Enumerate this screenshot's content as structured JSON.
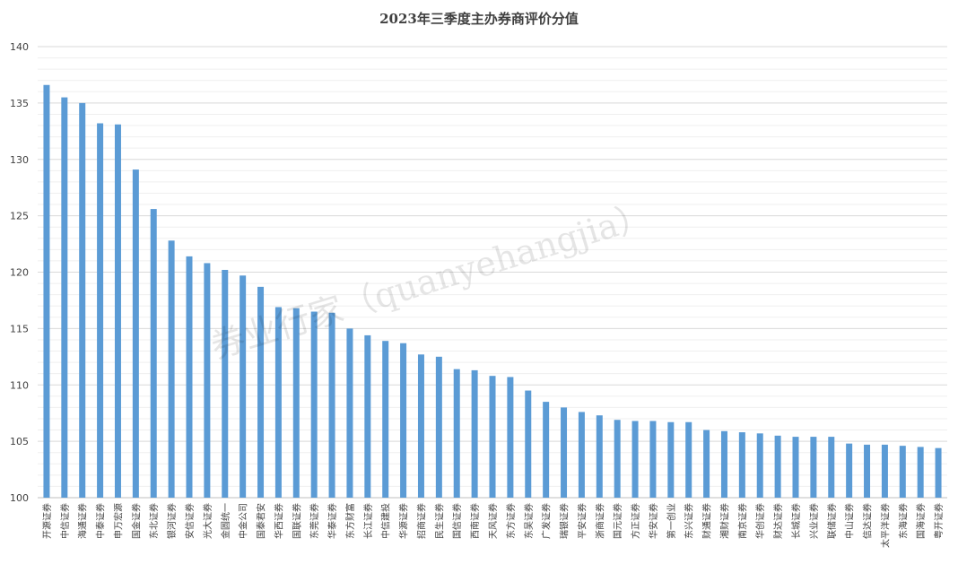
{
  "chart_data": {
    "type": "bar",
    "title": "2023年三季度主办券商评价分值",
    "ylim": [
      100,
      140
    ],
    "yticks": [
      100,
      105,
      110,
      115,
      120,
      125,
      130,
      135,
      140
    ],
    "grid": true,
    "legend": "none",
    "bar_color": "#5b9bd5",
    "categories": [
      "开源证券",
      "中信证券",
      "海通证券",
      "中泰证券",
      "申万宏源",
      "国金证券",
      "东北证券",
      "银河证券",
      "安信证券",
      "光大证券",
      "金圆统一",
      "中金公司",
      "国泰君安",
      "华西证券",
      "国联证券",
      "东莞证券",
      "华泰证券",
      "东方财富",
      "长江证券",
      "中信建投",
      "华源证券",
      "招商证券",
      "民生证券",
      "国信证券",
      "西南证券",
      "天风证券",
      "东方证券",
      "东吴证券",
      "广发证券",
      "瑞银证券",
      "平安证券",
      "浙商证券",
      "国元证券",
      "方正证券",
      "华安证券",
      "第一创业",
      "东兴证券",
      "财通证券",
      "湘财证券",
      "南京证券",
      "华创证券",
      "财达证券",
      "长城证券",
      "兴业证券",
      "联储证券",
      "中山证券",
      "信达证券",
      "太平洋证券",
      "东海证券",
      "国海证券",
      "粤开证券"
    ],
    "values": [
      136.6,
      135.5,
      135.0,
      133.2,
      133.1,
      129.1,
      125.6,
      122.8,
      121.4,
      120.8,
      120.2,
      119.7,
      118.7,
      116.9,
      116.8,
      116.5,
      116.4,
      115.0,
      114.4,
      113.9,
      113.7,
      112.7,
      112.5,
      111.4,
      111.3,
      110.8,
      110.7,
      109.5,
      108.5,
      108.0,
      107.6,
      107.3,
      106.9,
      106.8,
      106.8,
      106.7,
      106.7,
      106.0,
      105.9,
      105.8,
      105.7,
      105.5,
      105.4,
      105.4,
      105.4,
      104.8,
      104.7,
      104.7,
      104.6,
      104.5,
      104.4
    ]
  },
  "watermark": "券业行家（quanyehangjia）"
}
